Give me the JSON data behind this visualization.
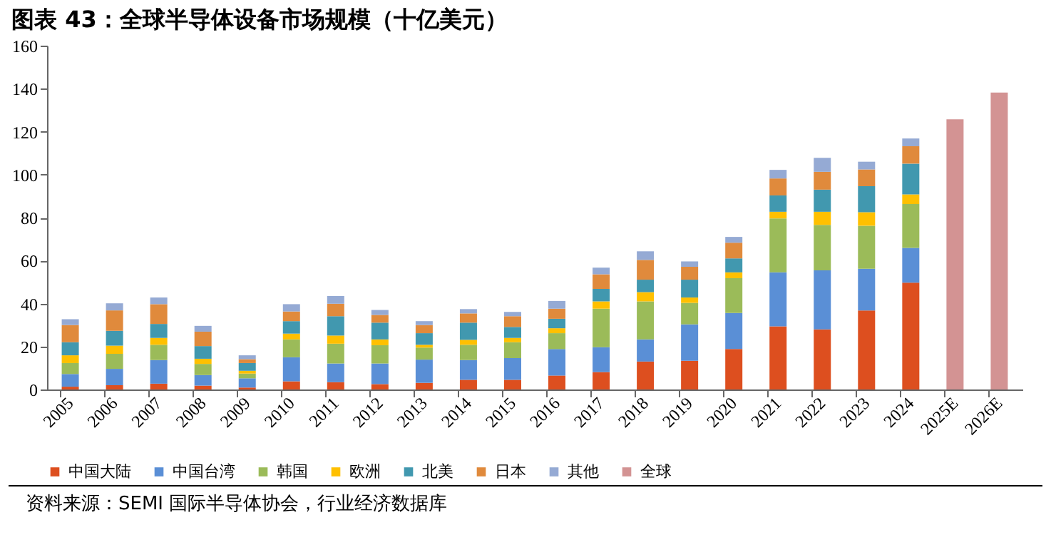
{
  "chart_data": {
    "type": "bar",
    "title": "图表 43：全球半导体设备市场规模（十亿美元）",
    "annotations": [
      "资料来源：SEMI 国际半导体协会，行业经济数据库"
    ],
    "categories": [
      "2005",
      "2006",
      "2007",
      "2008",
      "2009",
      "2010",
      "2011",
      "2012",
      "2013",
      "2014",
      "2015",
      "2016",
      "2017",
      "2018",
      "2019",
      "2020",
      "2021",
      "2022",
      "2023",
      "2024",
      "2025E",
      "2026E"
    ],
    "stacked": true,
    "legend": "bottom",
    "ylim": [
      0,
      160
    ],
    "yticks": [
      0,
      20,
      40,
      60,
      80,
      100,
      120,
      140,
      160
    ],
    "series": [
      {
        "name": "中国大陆",
        "color": "#dd4f1f",
        "values": [
          1.3,
          2.0,
          2.7,
          1.8,
          0.9,
          3.8,
          3.4,
          2.5,
          3.1,
          4.5,
          4.5,
          6.5,
          8.1,
          13.0,
          13.4,
          18.8,
          29.4,
          28.0,
          36.8,
          49.7,
          null,
          null
        ]
      },
      {
        "name": "中国台湾",
        "color": "#5a8fd6",
        "values": [
          5.9,
          7.6,
          11.0,
          4.9,
          4.3,
          11.2,
          8.7,
          9.6,
          10.8,
          9.2,
          10.1,
          12.3,
          11.6,
          10.3,
          16.9,
          16.8,
          25.1,
          27.4,
          19.4,
          16.2,
          null,
          null
        ]
      },
      {
        "name": "韩国",
        "color": "#9bbb59",
        "values": [
          5.1,
          7.0,
          7.1,
          5.2,
          2.2,
          8.3,
          9.2,
          8.5,
          5.6,
          7.1,
          7.4,
          7.4,
          17.9,
          17.7,
          10.0,
          16.2,
          25.1,
          21.2,
          20.0,
          20.4,
          null,
          null
        ]
      },
      {
        "name": "欧洲",
        "color": "#ffc000",
        "values": [
          3.6,
          3.8,
          3.2,
          2.4,
          1.3,
          2.7,
          3.8,
          2.7,
          1.3,
          2.3,
          2.0,
          2.3,
          3.4,
          4.3,
          2.5,
          2.7,
          3.1,
          6.1,
          6.3,
          4.5,
          null,
          null
        ]
      },
      {
        "name": "北美",
        "color": "#4198af",
        "values": [
          6.1,
          6.9,
          6.5,
          5.9,
          3.6,
          5.8,
          9.0,
          7.8,
          5.4,
          8.0,
          5.1,
          4.4,
          5.8,
          5.8,
          8.3,
          6.5,
          7.6,
          10.3,
          12.1,
          14.3,
          null,
          null
        ]
      },
      {
        "name": "日本",
        "color": "#e08a3c",
        "values": [
          8.0,
          9.5,
          9.2,
          6.7,
          1.8,
          4.5,
          5.8,
          3.6,
          3.8,
          4.3,
          5.0,
          4.7,
          6.8,
          9.2,
          6.0,
          7.3,
          7.9,
          8.3,
          7.8,
          8.1,
          null,
          null
        ]
      },
      {
        "name": "其他",
        "color": "#95aad4",
        "values": [
          2.7,
          3.3,
          3.1,
          2.7,
          1.8,
          3.4,
          3.6,
          2.3,
          1.8,
          2.0,
          2.0,
          3.6,
          3.1,
          4.0,
          2.5,
          2.7,
          4.0,
          6.5,
          3.6,
          3.6,
          null,
          null
        ]
      },
      {
        "name": "全球",
        "color": "#d39393",
        "values": [
          null,
          null,
          null,
          null,
          null,
          null,
          null,
          null,
          null,
          null,
          null,
          null,
          null,
          null,
          null,
          null,
          null,
          null,
          null,
          null,
          125.7,
          138.2
        ]
      }
    ]
  }
}
